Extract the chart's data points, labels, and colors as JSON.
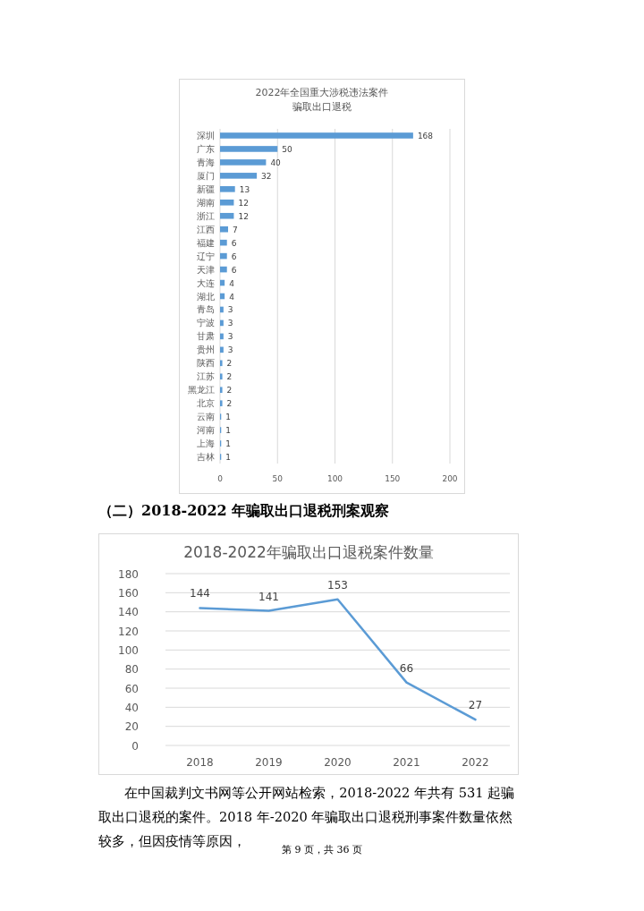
{
  "chart_data": [
    {
      "type": "bar",
      "orientation": "horizontal",
      "title": "2022年全国重大涉税违法案件",
      "subtitle": "骗取出口退税",
      "categories": [
        "深圳",
        "广东",
        "青海",
        "厦门",
        "新疆",
        "湖南",
        "浙江",
        "江西",
        "福建",
        "辽宁",
        "天津",
        "大连",
        "湖北",
        "青岛",
        "宁波",
        "甘肃",
        "贵州",
        "陕西",
        "江苏",
        "黑龙江",
        "北京",
        "云南",
        "河南",
        "上海",
        "吉林"
      ],
      "values": [
        168,
        50,
        40,
        32,
        13,
        12,
        12,
        7,
        6,
        6,
        6,
        4,
        4,
        3,
        3,
        3,
        3,
        2,
        2,
        2,
        2,
        1,
        1,
        1,
        1
      ],
      "color": "#5b9bd5",
      "xlim": [
        0,
        200
      ],
      "xticks": [
        0,
        50,
        100,
        150,
        200
      ],
      "grid": "x",
      "data_labels": true
    },
    {
      "type": "line",
      "title": "2018-2022年骗取出口退税案件数量",
      "categories": [
        "2018",
        "2019",
        "2020",
        "2021",
        "2022"
      ],
      "values": [
        144,
        141,
        153,
        66,
        27
      ],
      "color": "#5b9bd5",
      "ylim": [
        0,
        180
      ],
      "yticks": [
        0,
        20,
        40,
        60,
        80,
        100,
        120,
        140,
        160,
        180
      ],
      "grid": "y",
      "data_labels": true,
      "annotations": [
        "（二）2018-2022 年骗取出口退税刑案观察",
        "在中国裁判文书网等公开网站检索，2018-2022 年共有 531 起骗取出口退税的案件。2018 年-2020 年骗取出口退税刑事案件数量依然较多，但因疫情等原因，",
        "第 9 页，共 36 页"
      ]
    }
  ]
}
